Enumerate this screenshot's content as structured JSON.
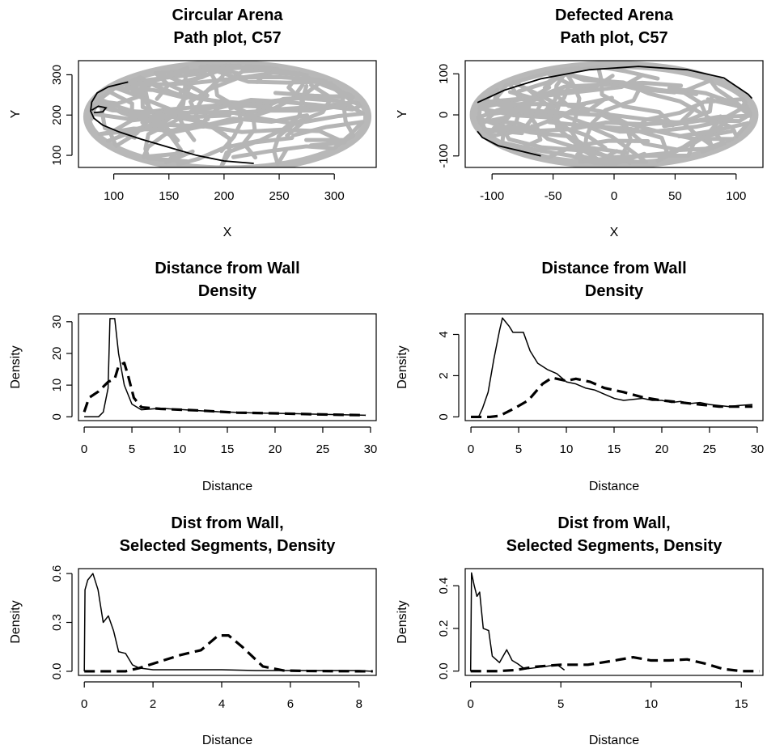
{
  "chart_data": [
    {
      "type": "path",
      "title": [
        "Circular Arena",
        "Path plot, C57"
      ],
      "xlabel": "X",
      "ylabel": "Y",
      "xlim": [
        68,
        338
      ],
      "ylim": [
        70,
        335
      ],
      "xticks": [
        100,
        150,
        200,
        250,
        300
      ],
      "yticks": [
        100,
        200,
        300
      ],
      "arena": {
        "cx": 203,
        "cy": 196,
        "rx": 127,
        "ry": 131
      },
      "trajectory": [
        [
          113,
          282
        ],
        [
          95,
          270
        ],
        [
          85,
          255
        ],
        [
          80,
          232
        ],
        [
          79,
          210
        ],
        [
          82,
          192
        ],
        [
          90,
          175
        ],
        [
          105,
          158
        ],
        [
          125,
          140
        ],
        [
          150,
          120
        ],
        [
          175,
          100
        ],
        [
          200,
          86
        ],
        [
          227,
          80
        ]
      ],
      "loop": [
        [
          80,
          212
        ],
        [
          86,
          222
        ],
        [
          93,
          218
        ],
        [
          90,
          208
        ],
        [
          82,
          206
        ]
      ]
    },
    {
      "type": "path",
      "title": [
        "Defected Arena",
        "Path plot, C57"
      ],
      "xlabel": "X",
      "ylabel": "Y",
      "xlim": [
        -122,
        122
      ],
      "ylim": [
        -128,
        132
      ],
      "xticks": [
        -100,
        -50,
        0,
        50,
        100
      ],
      "yticks": [
        -100,
        0,
        100
      ],
      "arena": {
        "cx": 0,
        "cy": 0,
        "rx": 115,
        "ry": 122
      },
      "trajectory": [
        [
          -112,
          30
        ],
        [
          -90,
          60
        ],
        [
          -60,
          88
        ],
        [
          -20,
          110
        ],
        [
          20,
          118
        ],
        [
          60,
          110
        ],
        [
          90,
          90
        ],
        [
          110,
          50
        ],
        [
          113,
          40
        ]
      ],
      "trajectory2": [
        [
          -112,
          -40
        ],
        [
          -108,
          -55
        ],
        [
          -95,
          -75
        ],
        [
          -60,
          -100
        ]
      ]
    },
    {
      "type": "line",
      "title": [
        "Distance from Wall",
        "Density"
      ],
      "xlabel": "Distance",
      "ylabel": "Density",
      "xlim": [
        -0.6,
        30.6
      ],
      "ylim": [
        -1.2,
        32.5
      ],
      "xticks": [
        0,
        5,
        10,
        15,
        20,
        25,
        30
      ],
      "yticks": [
        0,
        10,
        20,
        30
      ],
      "series": [
        {
          "style": "solid",
          "points": [
            [
              0,
              0
            ],
            [
              1.5,
              0
            ],
            [
              2,
              1.5
            ],
            [
              2.5,
              9
            ],
            [
              2.7,
              31
            ],
            [
              3.2,
              31
            ],
            [
              3.6,
              20
            ],
            [
              4.2,
              10
            ],
            [
              5,
              4
            ],
            [
              6,
              2.2
            ],
            [
              8,
              2.7
            ],
            [
              10,
              2.3
            ],
            [
              14,
              1.6
            ],
            [
              18,
              1.2
            ],
            [
              22,
              1
            ],
            [
              26,
              0.7
            ],
            [
              29.5,
              0.5
            ]
          ]
        },
        {
          "style": "dashed",
          "points": [
            [
              0,
              1.5
            ],
            [
              0.5,
              6
            ],
            [
              1.5,
              8
            ],
            [
              2.5,
              11
            ],
            [
              3.2,
              12
            ],
            [
              3.6,
              16
            ],
            [
              4.2,
              17
            ],
            [
              4.6,
              13
            ],
            [
              5.2,
              6
            ],
            [
              6,
              3
            ],
            [
              8,
              2.5
            ],
            [
              12,
              2
            ],
            [
              16,
              1.3
            ],
            [
              20,
              1.1
            ],
            [
              24,
              0.8
            ],
            [
              29.5,
              0.5
            ]
          ]
        }
      ]
    },
    {
      "type": "line",
      "title": [
        "Distance from Wall",
        "Density"
      ],
      "xlabel": "Distance",
      "ylabel": "Density",
      "xlim": [
        -0.6,
        30.6
      ],
      "ylim": [
        -0.18,
        5.0
      ],
      "xticks": [
        0,
        5,
        10,
        15,
        20,
        25,
        30
      ],
      "yticks": [
        0,
        2,
        4
      ],
      "series": [
        {
          "style": "solid",
          "points": [
            [
              0,
              0
            ],
            [
              0.8,
              0
            ],
            [
              1.2,
              0.4
            ],
            [
              1.8,
              1.2
            ],
            [
              2.4,
              2.8
            ],
            [
              3,
              4.2
            ],
            [
              3.3,
              4.8
            ],
            [
              4,
              4.4
            ],
            [
              4.4,
              4.1
            ],
            [
              5.5,
              4.1
            ],
            [
              6.2,
              3.2
            ],
            [
              7,
              2.6
            ],
            [
              8,
              2.3
            ],
            [
              9,
              2.1
            ],
            [
              10,
              1.7
            ],
            [
              11,
              1.6
            ],
            [
              12,
              1.4
            ],
            [
              13,
              1.3
            ],
            [
              14,
              1.1
            ],
            [
              15,
              0.9
            ],
            [
              16,
              0.8
            ],
            [
              17,
              0.85
            ],
            [
              18,
              0.9
            ],
            [
              19,
              0.8
            ],
            [
              20,
              0.8
            ],
            [
              21,
              0.7
            ],
            [
              22,
              0.75
            ],
            [
              23,
              0.65
            ],
            [
              24,
              0.7
            ],
            [
              25,
              0.6
            ],
            [
              26,
              0.55
            ],
            [
              27,
              0.5
            ],
            [
              28,
              0.55
            ],
            [
              29.5,
              0.6
            ]
          ]
        },
        {
          "style": "dashed",
          "points": [
            [
              0,
              0
            ],
            [
              2,
              0
            ],
            [
              3,
              0.05
            ],
            [
              4.5,
              0.4
            ],
            [
              6,
              0.8
            ],
            [
              7.5,
              1.6
            ],
            [
              8.5,
              1.9
            ],
            [
              10,
              1.75
            ],
            [
              11,
              1.85
            ],
            [
              12.5,
              1.7
            ],
            [
              14,
              1.4
            ],
            [
              16,
              1.2
            ],
            [
              18,
              0.95
            ],
            [
              20,
              0.8
            ],
            [
              22,
              0.7
            ],
            [
              24,
              0.6
            ],
            [
              26,
              0.5
            ],
            [
              28,
              0.5
            ],
            [
              29.5,
              0.5
            ]
          ]
        }
      ]
    },
    {
      "type": "line",
      "title": [
        "Dist from Wall,",
        "Selected Segments, Density"
      ],
      "xlabel": "Distance",
      "ylabel": "Density",
      "xlim": [
        -0.17,
        8.5
      ],
      "ylim": [
        -0.025,
        0.63
      ],
      "xticks": [
        0,
        2,
        4,
        6,
        8
      ],
      "yticks": [
        0.0,
        0.3,
        0.6
      ],
      "ytick_labels": [
        "0.0",
        "0.3",
        "0.6"
      ],
      "series": [
        {
          "style": "solid",
          "points": [
            [
              0,
              0
            ],
            [
              0.02,
              0.5
            ],
            [
              0.1,
              0.56
            ],
            [
              0.25,
              0.6
            ],
            [
              0.4,
              0.5
            ],
            [
              0.55,
              0.3
            ],
            [
              0.7,
              0.34
            ],
            [
              0.85,
              0.25
            ],
            [
              1,
              0.12
            ],
            [
              1.2,
              0.11
            ],
            [
              1.4,
              0.04
            ],
            [
              1.6,
              0.02
            ],
            [
              2,
              0.01
            ],
            [
              3,
              0.01
            ],
            [
              4,
              0.01
            ],
            [
              5,
              0.005
            ],
            [
              6,
              0.005
            ],
            [
              7,
              0.005
            ],
            [
              8,
              0.005
            ],
            [
              8.4,
              0
            ]
          ]
        },
        {
          "style": "dashed",
          "points": [
            [
              0,
              0
            ],
            [
              1.2,
              0
            ],
            [
              1.6,
              0.02
            ],
            [
              2.2,
              0.06
            ],
            [
              2.8,
              0.1
            ],
            [
              3.4,
              0.13
            ],
            [
              3.9,
              0.22
            ],
            [
              4.2,
              0.22
            ],
            [
              4.6,
              0.15
            ],
            [
              5.2,
              0.03
            ],
            [
              5.8,
              0.005
            ],
            [
              6.5,
              0.002
            ],
            [
              8.4,
              0
            ]
          ]
        }
      ]
    },
    {
      "type": "line",
      "title": [
        "Dist from Wall,",
        "Selected Segments, Density"
      ],
      "xlabel": "Distance",
      "ylabel": "Density",
      "xlim": [
        -0.3,
        16.2
      ],
      "ylim": [
        -0.02,
        0.48
      ],
      "xticks": [
        0,
        5,
        10,
        15
      ],
      "yticks": [
        0.0,
        0.2,
        0.4
      ],
      "ytick_labels": [
        "0.0",
        "0.2",
        "0.4"
      ],
      "series": [
        {
          "style": "solid",
          "points": [
            [
              0,
              0
            ],
            [
              0.05,
              0.46
            ],
            [
              0.2,
              0.4
            ],
            [
              0.35,
              0.35
            ],
            [
              0.5,
              0.37
            ],
            [
              0.7,
              0.2
            ],
            [
              1,
              0.19
            ],
            [
              1.2,
              0.07
            ],
            [
              1.6,
              0.04
            ],
            [
              2,
              0.1
            ],
            [
              2.3,
              0.05
            ],
            [
              2.6,
              0.035
            ],
            [
              3,
              0.01
            ],
            [
              4,
              0.02
            ],
            [
              4.8,
              0.03
            ],
            [
              5.2,
              0.005
            ]
          ]
        },
        {
          "style": "dashed",
          "points": [
            [
              0,
              0
            ],
            [
              1.5,
              0
            ],
            [
              2.5,
              0.005
            ],
            [
              3.5,
              0.02
            ],
            [
              5,
              0.03
            ],
            [
              6.5,
              0.03
            ],
            [
              8,
              0.05
            ],
            [
              9,
              0.065
            ],
            [
              10,
              0.05
            ],
            [
              11,
              0.05
            ],
            [
              12,
              0.055
            ],
            [
              13,
              0.035
            ],
            [
              14,
              0.01
            ],
            [
              15,
              0
            ],
            [
              16,
              0
            ]
          ]
        }
      ]
    }
  ]
}
